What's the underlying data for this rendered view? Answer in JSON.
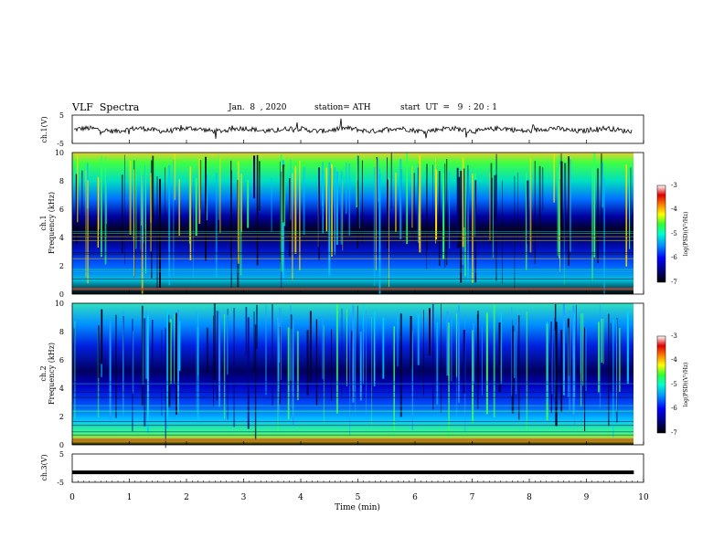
{
  "header": {
    "title": "VLF  Spectra",
    "date": "Jan.  8  , 2020",
    "station": "station= ATH",
    "start": "start  UT  =   9  : 20 : 1"
  },
  "chart_data": [
    {
      "type": "line",
      "panel": "ch1-voltage",
      "ylabel": "ch.1(V)",
      "ylim": [
        -5,
        5
      ],
      "y_ticks": [
        "5",
        "-5"
      ],
      "xlim": [
        0,
        10
      ],
      "description_values": "noisy waveform around 0 V"
    },
    {
      "type": "heatmap",
      "panel": "ch1-spectrogram",
      "ylabel": "ch.1\nFrequency  (kHz)",
      "ylim": [
        0,
        10
      ],
      "y_ticks": [
        "0",
        "2",
        "4",
        "6",
        "8",
        "10"
      ],
      "xlim": [
        0,
        9.83
      ],
      "colorbar": {
        "label": "log(PSD)(V²/Hz)",
        "range": [
          -7,
          -3
        ],
        "ticks": [
          "-3",
          "-4",
          "-5",
          "-6",
          "-7"
        ]
      }
    },
    {
      "type": "heatmap",
      "panel": "ch2-spectrogram",
      "ylabel": "ch.2\nFrequency  (kHz)",
      "ylim": [
        0,
        10
      ],
      "y_ticks": [
        "0",
        "2",
        "4",
        "6",
        "8",
        "10"
      ],
      "xlim": [
        0,
        9.83
      ],
      "colorbar": {
        "label": "log(PSD)(V²/Hz)",
        "range": [
          -7,
          -3
        ],
        "ticks": [
          "-3",
          "-4",
          "-5",
          "-6",
          "-7"
        ]
      }
    },
    {
      "type": "line",
      "panel": "ch3-voltage",
      "ylabel": "ch.3(V)",
      "ylim": [
        -5,
        5
      ],
      "y_ticks": [
        "5",
        "-5"
      ],
      "x": [
        0,
        9.83
      ],
      "y": [
        -1.5,
        -1.5
      ]
    }
  ],
  "x_axis": {
    "label": "Time  (min)",
    "ticks": [
      "0",
      "1",
      "2",
      "3",
      "4",
      "5",
      "6",
      "7",
      "8",
      "9",
      "10"
    ]
  },
  "labels": {
    "ch1_voltage": "ch.1(V)",
    "ch1_spec_a": "ch.1",
    "ch1_spec_b": "Frequency  (kHz)",
    "ch2_spec_a": "ch.2",
    "ch2_spec_b": "Frequency  (kHz)",
    "ch3_voltage": "ch.3(V)",
    "v_top": "5",
    "v_bot": "-5",
    "f0": "0",
    "f2": "2",
    "f4": "4",
    "f6": "6",
    "f8": "8",
    "f10": "10",
    "cb_label": "log(PSD)(V²/Hz)",
    "cb_m3": "-3",
    "cb_m4": "-4",
    "cb_m5": "-5",
    "cb_m6": "-6",
    "cb_m7": "-7"
  }
}
